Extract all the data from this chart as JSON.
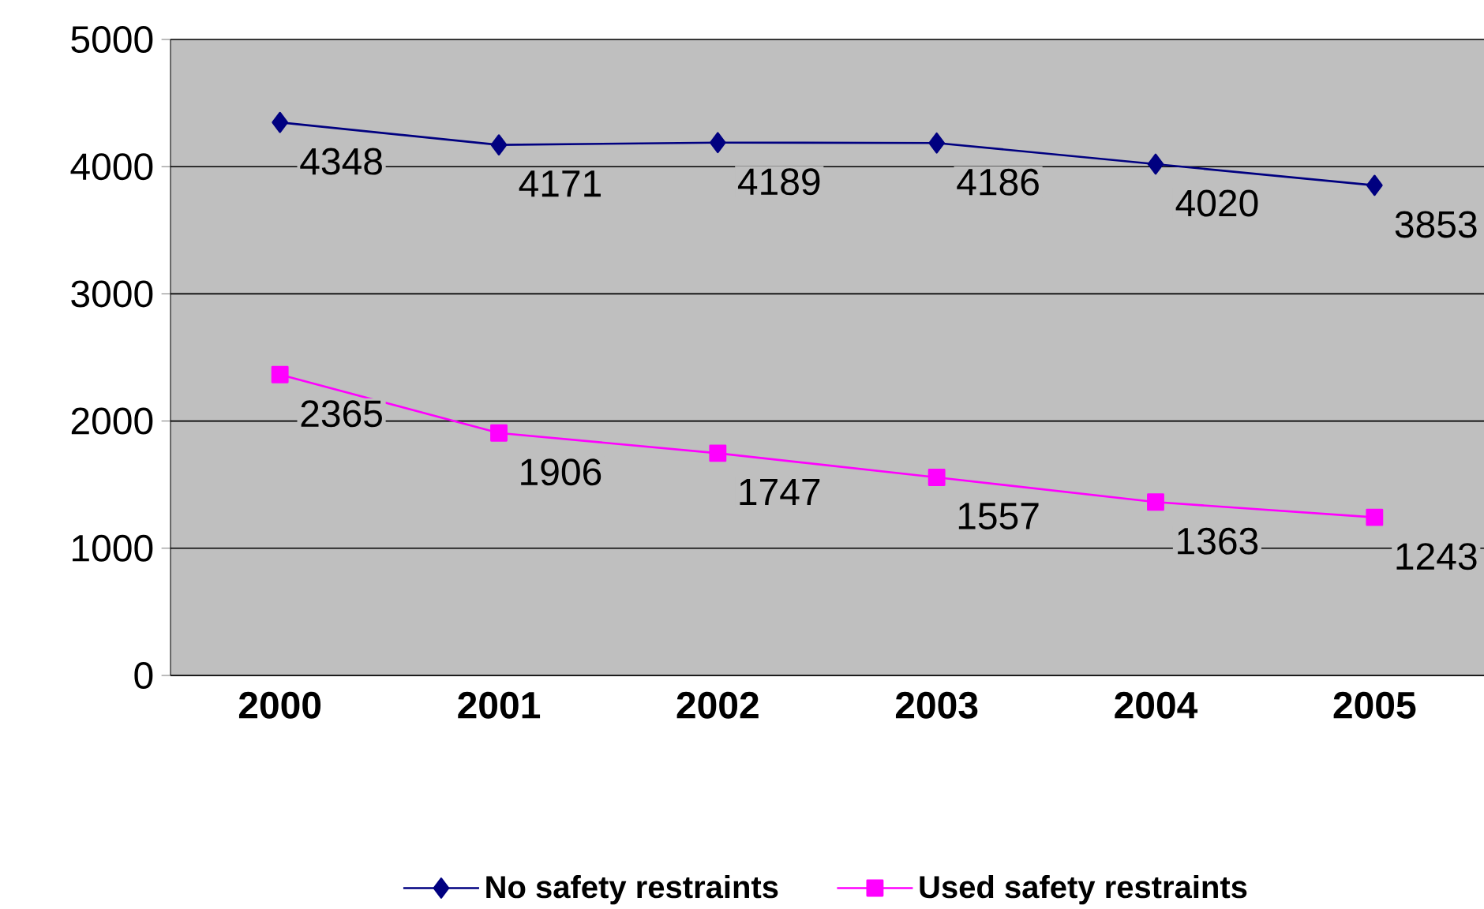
{
  "chart_data": {
    "type": "line",
    "categories": [
      "2000",
      "2001",
      "2002",
      "2003",
      "2004",
      "2005"
    ],
    "series": [
      {
        "name": "No safety restraints",
        "color": "#000080",
        "marker": "diamond",
        "values": [
          4348,
          4171,
          4189,
          4186,
          4020,
          3853
        ]
      },
      {
        "name": "Used safety restraints",
        "color": "#ff00ff",
        "marker": "square",
        "values": [
          2365,
          1906,
          1747,
          1557,
          1363,
          1243
        ]
      }
    ],
    "ylim": [
      0,
      5000
    ],
    "yticks": [
      0,
      1000,
      2000,
      3000,
      4000,
      5000
    ],
    "grid": "y",
    "legend": "bottom",
    "data_labels": true
  }
}
